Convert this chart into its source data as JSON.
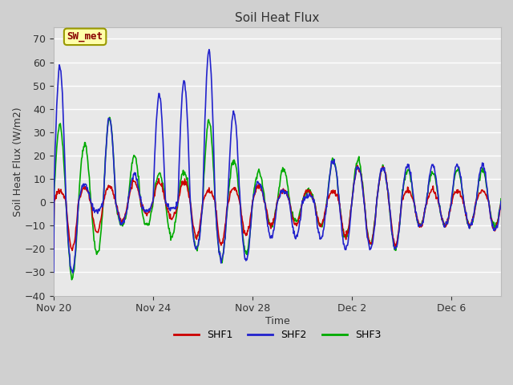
{
  "title": "Soil Heat Flux",
  "xlabel": "Time",
  "ylabel": "Soil Heat Flux (W/m2)",
  "ylim": [
    -40,
    75
  ],
  "yticks": [
    -40,
    -30,
    -20,
    -10,
    0,
    10,
    20,
    30,
    40,
    50,
    60,
    70
  ],
  "fig_bg_color": "#d0d0d0",
  "plot_bg_color": "#e8e8e8",
  "grid_color": "#ffffff",
  "line_colors": {
    "SHF1": "#cc0000",
    "SHF2": "#2222cc",
    "SHF3": "#00aa00"
  },
  "line_width": 1.2,
  "legend_label": "SW_met",
  "legend_box_facecolor": "#ffffaa",
  "legend_box_edgecolor": "#999900",
  "legend_text_color": "#880000",
  "x_tick_labels": [
    "Nov 20",
    "Nov 24",
    "Nov 28",
    "Dec 2",
    "Dec 6"
  ],
  "x_tick_positions": [
    0,
    4,
    8,
    12,
    16
  ],
  "xlim": [
    0,
    18
  ]
}
